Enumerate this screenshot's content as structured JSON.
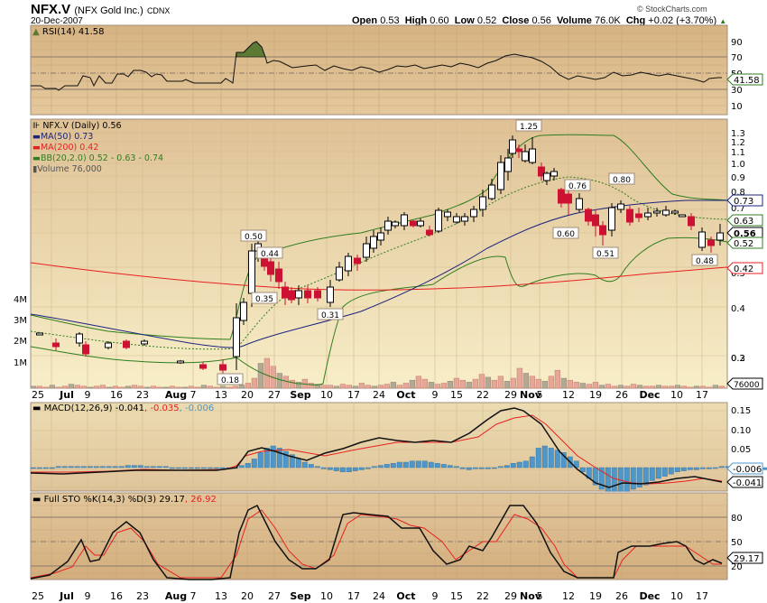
{
  "header": {
    "symbol": "NFX.V",
    "name": "(NFX Gold Inc.)",
    "exchange": "CDNX",
    "date": "20-Dec-2007",
    "brand": "© StockCharts.com",
    "open_label": "Open",
    "open": "0.53",
    "high_label": "High",
    "high": "0.60",
    "low_label": "Low",
    "low": "0.52",
    "close_label": "Close",
    "close": "0.56",
    "volume_label": "Volume",
    "volume": "76.0K",
    "chg_label": "Chg",
    "chg": "+0.02 (+3.70%)",
    "chg_arrow": "▲"
  },
  "colors": {
    "panel_top": "#d9b787",
    "panel_bottom": "#f6ecc4",
    "grid": "#c9ad85",
    "up_candle": "#ffffff",
    "down_candle": "#cc1133",
    "ma50": "#1a237e",
    "ma200": "#e82020",
    "bb": "#2e7d1e",
    "macd_hist": "#4f97c9",
    "volume_up": "#b3a894",
    "volume_down": "#e5a798"
  },
  "rsi": {
    "legend": "RSI(14) 41.58",
    "value_tag": "41.58",
    "ticks": [
      "90",
      "70",
      "50",
      "30",
      "10"
    ]
  },
  "price": {
    "legend_title": "NFX.V (Daily) 0.56",
    "legend_ma50": "MA(50) 0.73",
    "legend_ma200": "MA(200) 0.42",
    "legend_bb": "BB(20,2.0) 0.52 - 0.63 - 0.74",
    "legend_volume": "Volume 76,000",
    "ticks": [
      "1.3",
      "1.2",
      "1.1",
      "1.0",
      "0.9",
      "0.8",
      "0.7",
      "0.6",
      "0.5",
      "0.4",
      "0.3",
      "0.2"
    ],
    "vol_ticks": [
      "4M",
      "3M",
      "2M",
      "1M"
    ],
    "tag_ma50": "0.73",
    "tag_bb_mid": "0.63",
    "tag_close": "0.56",
    "tag_bb_low": "0.52",
    "tag_ma200": "0.42",
    "tag_volume": "76000",
    "annotations": [
      "0.18",
      "0.50",
      "0.44",
      "0.35",
      "0.31",
      "1.25",
      "0.76",
      "0.60",
      "0.80",
      "0.51",
      "0.48"
    ]
  },
  "xaxis": {
    "labels": [
      "25",
      "Jul",
      "9",
      "16",
      "23",
      "Aug",
      "7",
      "13",
      "20",
      "27",
      "Sep",
      "10",
      "17",
      "24",
      "Oct",
      "9",
      "15",
      "22",
      "29",
      "Nov",
      "5",
      "12",
      "19",
      "26",
      "Dec",
      "10",
      "17"
    ]
  },
  "macd": {
    "legend_main": "MACD(12,26,9) -0.041",
    "legend_signal": ", -0.035",
    "legend_hist": ", -0.006",
    "ticks": [
      "0.15",
      "0.10",
      "0.05"
    ],
    "tag_hist": "-0.006",
    "tag_macd": "-0.041"
  },
  "sto": {
    "legend_main": "Full STO %K(14,3) %D(3) 29.17",
    "legend_d": ", 26.92",
    "ticks": [
      "80",
      "50",
      "20"
    ],
    "tag_k": "29.17"
  },
  "chart_data": [
    {
      "type": "line",
      "title": "RSI(14)",
      "ylim": [
        0,
        100
      ],
      "x": [
        "Jun 25",
        "Jul 9",
        "Jul 23",
        "Aug 7",
        "Aug 17",
        "Aug 20",
        "Aug 27",
        "Sep 10",
        "Sep 24",
        "Oct 9",
        "Oct 22",
        "Nov 5",
        "Nov 19",
        "Dec 3",
        "Dec 17",
        "Dec 20"
      ],
      "values": [
        35,
        33,
        42,
        45,
        40,
        85,
        88,
        62,
        55,
        52,
        48,
        55,
        46,
        48,
        40,
        41.58
      ],
      "reference_lines": [
        70,
        50,
        30
      ]
    },
    {
      "type": "candlestick",
      "title": "NFX.V (Daily) 0.56",
      "yscale": "log",
      "ylim": [
        0.17,
        1.4
      ],
      "x": [
        "Jun 25",
        "Jul 9",
        "Jul 23",
        "Aug 7",
        "Aug 13",
        "Aug 17",
        "Aug 20",
        "Aug 22",
        "Aug 27",
        "Sep 4",
        "Sep 10",
        "Sep 17",
        "Sep 24",
        "Oct 1",
        "Oct 9",
        "Oct 15",
        "Oct 22",
        "Oct 29",
        "Nov 1",
        "Nov 5",
        "Nov 12",
        "Nov 15",
        "Nov 19",
        "Nov 22",
        "Nov 26",
        "Dec 3",
        "Dec 10",
        "Dec 17",
        "Dec 20"
      ],
      "close": [
        0.24,
        0.25,
        0.25,
        0.21,
        0.2,
        0.26,
        0.48,
        0.4,
        0.36,
        0.37,
        0.38,
        0.45,
        0.55,
        0.65,
        0.62,
        0.67,
        0.9,
        1.15,
        1.2,
        1.0,
        0.7,
        0.74,
        0.58,
        0.54,
        0.72,
        0.7,
        0.66,
        0.52,
        0.56
      ],
      "series": [
        {
          "name": "MA(50)",
          "last": 0.73
        },
        {
          "name": "MA(200)",
          "last": 0.42
        },
        {
          "name": "BB upper",
          "last": 0.74
        },
        {
          "name": "BB mid",
          "last": 0.63
        },
        {
          "name": "BB lower",
          "last": 0.52
        }
      ],
      "annotations": [
        {
          "x": "Aug 15",
          "label": "0.18"
        },
        {
          "x": "Aug 20",
          "label": "0.50"
        },
        {
          "x": "Aug 22",
          "label": "0.44"
        },
        {
          "x": "Aug 24",
          "label": "0.35"
        },
        {
          "x": "Sep 10",
          "label": "0.31"
        },
        {
          "x": "Nov 1",
          "label": "1.25"
        },
        {
          "x": "Nov 15",
          "label": "0.76"
        },
        {
          "x": "Nov 14",
          "label": "0.60"
        },
        {
          "x": "Nov 26",
          "label": "0.80"
        },
        {
          "x": "Nov 21",
          "label": "0.51"
        },
        {
          "x": "Dec 17",
          "label": "0.48"
        }
      ],
      "volume_last": 76000,
      "volume_ylim": [
        0,
        4500000
      ]
    },
    {
      "type": "line",
      "title": "MACD(12,26,9)",
      "ylim": [
        -0.07,
        0.17
      ],
      "series": [
        {
          "name": "MACD",
          "last": -0.041
        },
        {
          "name": "Signal",
          "last": -0.035
        },
        {
          "name": "Histogram",
          "last": -0.006
        }
      ]
    },
    {
      "type": "line",
      "title": "Full STO %K(14,3) %D(3)",
      "ylim": [
        0,
        100
      ],
      "series": [
        {
          "name": "%K",
          "last": 29.17
        },
        {
          "name": "%D",
          "last": 26.92
        }
      ],
      "reference_lines": [
        80,
        50,
        20
      ]
    }
  ]
}
